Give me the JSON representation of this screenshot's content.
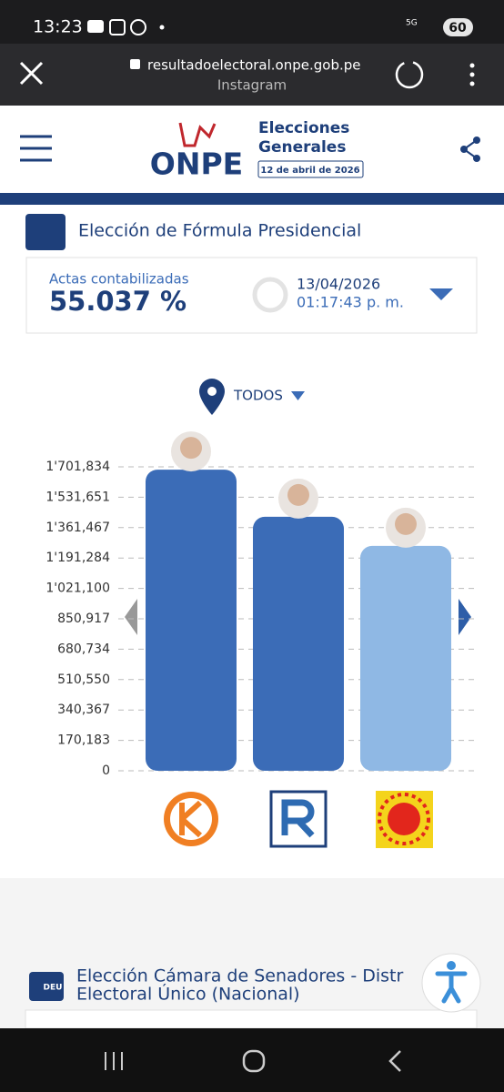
{
  "status_bar": {
    "time": "13:23",
    "network": "5G",
    "battery": "60"
  },
  "browser": {
    "url": "resultadoelectoral.onpe.gob.pe",
    "source": "Instagram"
  },
  "header": {
    "logo": "ONPE",
    "title_lines": [
      "Elecciones",
      "Generales"
    ],
    "date": "12 de abril de 2026"
  },
  "section": {
    "title": "Elección de Fórmula Presidencial"
  },
  "summary": {
    "label": "Actas contabilizadas",
    "percent": "55.037 %",
    "date": "13/04/2026",
    "time": "01:17:43 p. m."
  },
  "filter": "TODOS",
  "chart_data": {
    "type": "bar",
    "categories": [
      null,
      null,
      null
    ],
    "values": [
      1686000,
      1422000,
      1259000
    ],
    "colors": [
      "#3b6cb7",
      "#3b6cb7",
      "#8fb8e4"
    ],
    "ylim": [
      0,
      1701834
    ],
    "yticks": [
      0,
      {
        "value": 170183,
        "label": "170,183"
      },
      {
        "value": 340367,
        "label": "340,367"
      },
      {
        "value": 510550,
        "label": "510,550"
      },
      {
        "value": 680734,
        "label": "680,734"
      },
      {
        "value": 850917,
        "label": "850,917"
      },
      {
        "value": 1021100,
        "label": "1'021,100"
      },
      {
        "value": 1191284,
        "label": "1'191,284"
      },
      {
        "value": 1361467,
        "label": "1'361,467"
      },
      {
        "value": 1531651,
        "label": "1'531,651"
      },
      {
        "value": 1701834,
        "label": "1'701,834"
      }
    ],
    "grid": true
  },
  "next_section": {
    "badge": "DEU",
    "title_lines": [
      "Elección Cámara de Senadores - Distr",
      "Electoral Único (Nacional)"
    ]
  }
}
